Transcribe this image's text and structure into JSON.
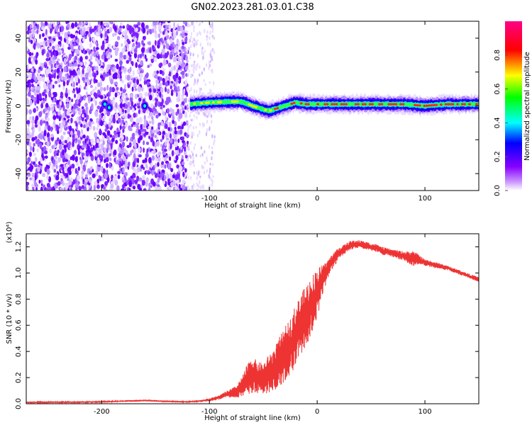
{
  "title": "GN02.2023.281.03.01.C38",
  "chart_data": [
    {
      "type": "heatmap",
      "xlabel": "Height of straight line (km)",
      "ylabel": "Frequency (Hz)",
      "xlim": [
        -270,
        150
      ],
      "ylim": [
        -50,
        50
      ],
      "x_ticks": [
        -200,
        -100,
        0,
        100
      ],
      "y_ticks": [
        -40,
        -20,
        0,
        20,
        40
      ],
      "colorbar": {
        "label": "Normalized spectral amplitude",
        "range": [
          0,
          1
        ],
        "ticks": [
          0.0,
          0.2,
          0.4,
          0.6,
          0.8
        ],
        "colormap": [
          "#ffffff",
          "#8800ff",
          "#0000ff",
          "#00ffff",
          "#00ff00",
          "#ffff00",
          "#ff0000",
          "#ff0088"
        ]
      },
      "noise_region_x": [
        -270,
        -120
      ],
      "faint_noise_region_x": [
        -120,
        -95
      ],
      "track": {
        "x": [
          -118,
          -100,
          -80,
          -70,
          -60,
          -50,
          -45,
          -40,
          -35,
          -30,
          -25,
          -20,
          -10,
          0,
          20,
          50,
          80,
          100,
          120,
          150
        ],
        "freq": [
          1,
          2,
          2.5,
          2.5,
          0,
          -2,
          -3,
          -2,
          -1,
          0,
          1,
          2,
          1,
          1,
          1,
          1,
          1,
          0,
          1,
          1
        ],
        "peak_amplitude": 0.85
      },
      "extra_blobs": [
        {
          "x": -197,
          "freq": 1
        },
        {
          "x": -193,
          "freq": -1
        },
        {
          "x": -160,
          "freq": 0
        }
      ]
    },
    {
      "type": "line",
      "xlabel": "Height of straight line (km)",
      "ylabel": "SNR (10 * v/v)",
      "y_multiplier": "(x10⁴)",
      "xlim": [
        -270,
        150
      ],
      "ylim": [
        0,
        1.3
      ],
      "x_ticks": [
        -200,
        -100,
        0,
        100
      ],
      "y_ticks": [
        0.0,
        0.2,
        0.4,
        0.6,
        0.8,
        1.0,
        1.2
      ],
      "color": "#ee3333",
      "series": [
        {
          "x": [
            -270,
            -250,
            -220,
            -200,
            -180,
            -160,
            -140,
            -120,
            -110,
            -100,
            -95,
            -90,
            -85,
            -80,
            -75,
            -70,
            -65,
            -60,
            -55,
            -50,
            -45,
            -40,
            -35,
            -30,
            -25,
            -20,
            -15,
            -10,
            -5,
            0,
            5,
            10,
            15,
            20,
            25,
            30,
            35,
            40,
            45,
            50,
            55,
            60,
            70,
            80,
            85,
            90,
            95,
            100,
            110,
            120,
            130,
            140,
            150
          ],
          "values": [
            0.01,
            0.012,
            0.012,
            0.015,
            0.02,
            0.025,
            0.018,
            0.015,
            0.02,
            0.03,
            0.04,
            0.05,
            0.07,
            0.08,
            0.09,
            0.13,
            0.18,
            0.22,
            0.2,
            0.19,
            0.23,
            0.26,
            0.32,
            0.38,
            0.44,
            0.52,
            0.6,
            0.68,
            0.76,
            0.85,
            0.94,
            1.03,
            1.1,
            1.15,
            1.18,
            1.21,
            1.22,
            1.22,
            1.21,
            1.2,
            1.19,
            1.17,
            1.15,
            1.13,
            1.12,
            1.11,
            1.1,
            1.08,
            1.06,
            1.04,
            1.01,
            0.98,
            0.95
          ],
          "noise_amplitude": [
            0.004,
            0.004,
            0.004,
            0.004,
            0.005,
            0.006,
            0.005,
            0.004,
            0.006,
            0.01,
            0.012,
            0.015,
            0.02,
            0.03,
            0.04,
            0.06,
            0.1,
            0.12,
            0.1,
            0.1,
            0.12,
            0.14,
            0.16,
            0.17,
            0.18,
            0.2,
            0.2,
            0.2,
            0.18,
            0.16,
            0.1,
            0.06,
            0.05,
            0.04,
            0.03,
            0.03,
            0.025,
            0.025,
            0.025,
            0.025,
            0.025,
            0.025,
            0.025,
            0.03,
            0.04,
            0.05,
            0.03,
            0.02,
            0.02,
            0.015,
            0.015,
            0.015,
            0.015
          ]
        }
      ]
    }
  ]
}
